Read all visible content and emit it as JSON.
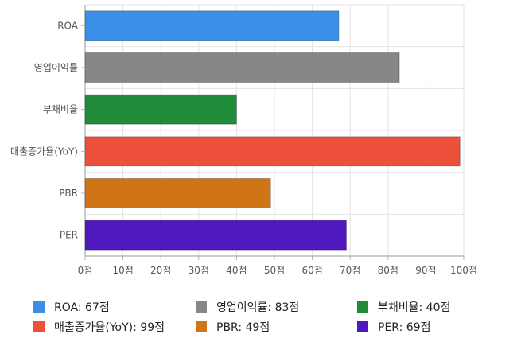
{
  "chart_data": {
    "type": "bar",
    "orientation": "horizontal",
    "categories": [
      "ROA",
      "영업이익률",
      "부채비율",
      "매출증가율(YoY)",
      "PBR",
      "PER"
    ],
    "values": [
      67,
      83,
      40,
      99,
      49,
      69
    ],
    "colors": [
      "#3b8fe8",
      "#878787",
      "#1e8c38",
      "#ec4f3a",
      "#cf7518",
      "#4f19be"
    ],
    "xlim": [
      0,
      100
    ],
    "x_ticks": [
      0,
      10,
      20,
      30,
      40,
      50,
      60,
      70,
      80,
      90,
      100
    ],
    "tick_labels": [
      "0점",
      "10점",
      "20점",
      "30점",
      "40점",
      "50점",
      "60점",
      "70점",
      "80점",
      "90점",
      "100점"
    ],
    "grid": true,
    "legend_position": "bottom",
    "legend": [
      "ROA: 67점",
      "영업이익률: 83점",
      "부채비율: 40점",
      "매출증가율(YoY): 99점",
      "PBR: 49점",
      "PER: 69점"
    ]
  }
}
